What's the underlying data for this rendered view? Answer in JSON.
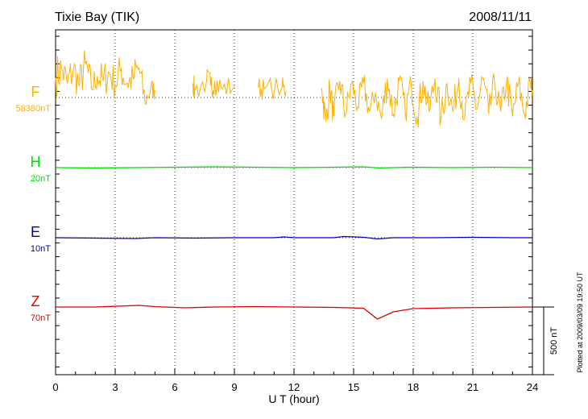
{
  "header": {
    "station": "Tixie Bay (TIK)",
    "date": "2008/11/11"
  },
  "footer": {
    "plotted_note": "Plotted at 2009/03/09 19:50 UT",
    "scale_bar_label": "500 nT"
  },
  "colors": {
    "F": "#ffb000",
    "H": "#00dd00",
    "E": "#0000b4",
    "Z": "#e00000",
    "grid": "#000000"
  },
  "chart_data": {
    "type": "line",
    "xlabel": "U T (hour)",
    "xlim": [
      0,
      24
    ],
    "x_ticks": [
      "0",
      "3",
      "6",
      "9",
      "12",
      "15",
      "18",
      "21",
      "24"
    ],
    "y_axis_unit": "nT",
    "scale_bar_nT": 500,
    "grid": true,
    "series": [
      {
        "name": "F",
        "baseline_label": "58380nT",
        "description_points": [
          [
            0.0,
            420
          ],
          [
            0.3,
            600
          ],
          [
            0.6,
            300
          ],
          [
            0.9,
            600
          ],
          [
            1.2,
            250
          ],
          [
            1.5,
            700
          ],
          [
            1.8,
            200
          ],
          [
            2.1,
            450
          ],
          [
            2.4,
            350
          ],
          [
            2.7,
            520
          ],
          [
            3.0,
            280
          ],
          [
            3.3,
            600
          ],
          [
            3.6,
            300
          ],
          [
            3.9,
            400
          ],
          [
            4.2,
            620
          ],
          [
            4.5,
            -100
          ],
          [
            4.8,
            200
          ],
          [
            5.0,
            150
          ],
          [
            6.9,
            300
          ],
          [
            7.0,
            150
          ],
          [
            7.6,
            350
          ],
          [
            7.8,
            250
          ],
          [
            8.0,
            350
          ],
          [
            8.4,
            180
          ],
          [
            9.0,
            250
          ],
          [
            10.2,
            210
          ],
          [
            10.5,
            180
          ],
          [
            11.4,
            220
          ],
          [
            11.6,
            140
          ],
          [
            13.4,
            200
          ],
          [
            13.6,
            -500
          ],
          [
            13.8,
            200
          ],
          [
            14.0,
            -400
          ],
          [
            14.3,
            350
          ],
          [
            14.6,
            -350
          ],
          [
            14.9,
            300
          ],
          [
            15.2,
            -200
          ],
          [
            15.5,
            300
          ],
          [
            15.8,
            -300
          ],
          [
            16.1,
            100
          ],
          [
            16.4,
            -450
          ],
          [
            16.7,
            400
          ],
          [
            17.0,
            -350
          ],
          [
            17.3,
            350
          ],
          [
            17.6,
            -300
          ],
          [
            17.9,
            300
          ],
          [
            18.2,
            -400
          ],
          [
            18.5,
            350
          ],
          [
            18.8,
            -300
          ],
          [
            19.1,
            400
          ],
          [
            19.4,
            -450
          ],
          [
            19.7,
            300
          ],
          [
            20.0,
            -300
          ],
          [
            20.3,
            400
          ],
          [
            20.6,
            -400
          ],
          [
            20.9,
            300
          ],
          [
            21.2,
            -250
          ],
          [
            21.5,
            400
          ],
          [
            21.8,
            -350
          ],
          [
            22.1,
            300
          ],
          [
            22.4,
            -300
          ],
          [
            22.7,
            350
          ],
          [
            23.0,
            -400
          ],
          [
            23.3,
            300
          ],
          [
            23.6,
            -350
          ],
          [
            23.9,
            300
          ],
          [
            24.0,
            150
          ]
        ]
      },
      {
        "name": "H",
        "baseline_label": "20nT",
        "description_points": [
          [
            0,
            0
          ],
          [
            2,
            -1
          ],
          [
            4,
            0
          ],
          [
            6,
            1
          ],
          [
            8,
            2
          ],
          [
            10,
            1
          ],
          [
            12,
            0
          ],
          [
            14,
            1
          ],
          [
            15.5,
            2
          ],
          [
            16.3,
            -1
          ],
          [
            17,
            0
          ],
          [
            18,
            1
          ],
          [
            20,
            0
          ],
          [
            22,
            1
          ],
          [
            24,
            0
          ]
        ]
      },
      {
        "name": "E",
        "baseline_label": "10nT",
        "description_points": [
          [
            0,
            0
          ],
          [
            2,
            -1
          ],
          [
            4,
            -2
          ],
          [
            5,
            0
          ],
          [
            7,
            -1
          ],
          [
            9,
            0
          ],
          [
            11,
            0
          ],
          [
            11.5,
            2
          ],
          [
            12,
            0
          ],
          [
            14,
            0
          ],
          [
            14.5,
            3
          ],
          [
            15.5,
            1
          ],
          [
            16.2,
            -3
          ],
          [
            17,
            0
          ],
          [
            19,
            0
          ],
          [
            21,
            1
          ],
          [
            23,
            0
          ],
          [
            24,
            0
          ]
        ]
      },
      {
        "name": "Z",
        "baseline_label": "70nT",
        "description_points": [
          [
            0,
            0
          ],
          [
            2,
            0
          ],
          [
            4.2,
            4
          ],
          [
            5,
            1
          ],
          [
            6.5,
            -2
          ],
          [
            8,
            0
          ],
          [
            10,
            1
          ],
          [
            12,
            0
          ],
          [
            14,
            -1
          ],
          [
            15.5,
            -3
          ],
          [
            16.2,
            -30
          ],
          [
            17,
            -12
          ],
          [
            18,
            -4
          ],
          [
            20,
            -2
          ],
          [
            22,
            -1
          ],
          [
            24,
            0
          ]
        ]
      }
    ]
  }
}
